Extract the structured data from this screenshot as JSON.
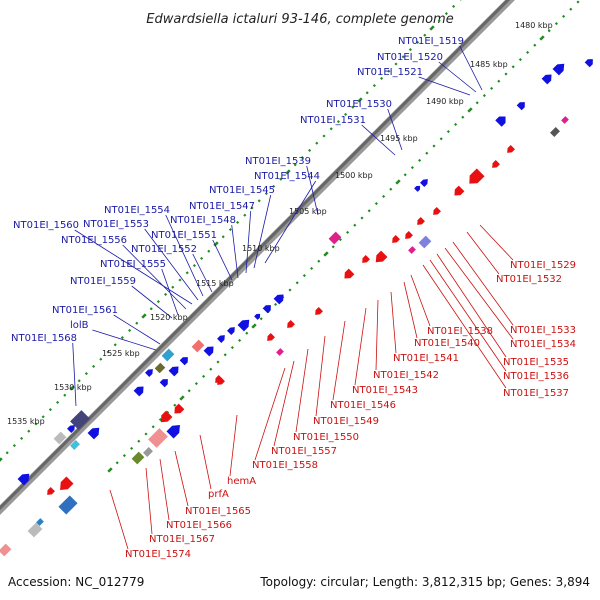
{
  "title": "Edwardsiella ictaluri 93-146, complete genome",
  "footer": {
    "accession": "Accession: NC_012779",
    "summary": "Topology: circular; Length: 3,812,315 bp; Genes: 3,894"
  },
  "colors": {
    "backbone": "#777777",
    "tick": "#228b22",
    "forward_label": "#1a1aa6",
    "reverse_label": "#cc1111",
    "forward_gene": "#1010e0",
    "reverse_gene": "#e81010"
  },
  "scale_labels": [
    "1480 kbp",
    "1485 kbp",
    "1490 kbp",
    "1495 kbp",
    "1500 kbp",
    "1505 kbp",
    "1510 kbp",
    "1515 kbp",
    "1520 kbp",
    "1525 kbp",
    "1530 kbp",
    "1535 kbp"
  ],
  "forward_labels": [
    "NT01EI_1519",
    "NT01EI_1520",
    "NT01EI_1521",
    "NT01EI_1530",
    "NT01EI_1531",
    "NT01EI_1539",
    "NT01EI_1544",
    "NT01EI_1545",
    "NT01EI_1547",
    "NT01EI_1548",
    "NT01EI_1551",
    "NT01EI_1552",
    "NT01EI_1554",
    "NT01EI_1553",
    "NT01EI_1560",
    "NT01EI_1556",
    "NT01EI_1555",
    "NT01EI_1559",
    "NT01EI_1561",
    "lolB",
    "NT01EI_1568"
  ],
  "reverse_labels": [
    "NT01EI_1529",
    "NT01EI_1532",
    "NT01EI_1533",
    "NT01EI_1534",
    "NT01EI_1535",
    "NT01EI_1536",
    "NT01EI_1537",
    "NT01EI_1538",
    "NT01EI_1540",
    "NT01EI_1541",
    "NT01EI_1542",
    "NT01EI_1543",
    "NT01EI_1546",
    "NT01EI_1549",
    "NT01EI_1550",
    "NT01EI_1557",
    "NT01EI_1558",
    "hemA",
    "prfA",
    "NT01EI_1565",
    "NT01EI_1566",
    "NT01EI_1567",
    "NT01EI_1574"
  ]
}
